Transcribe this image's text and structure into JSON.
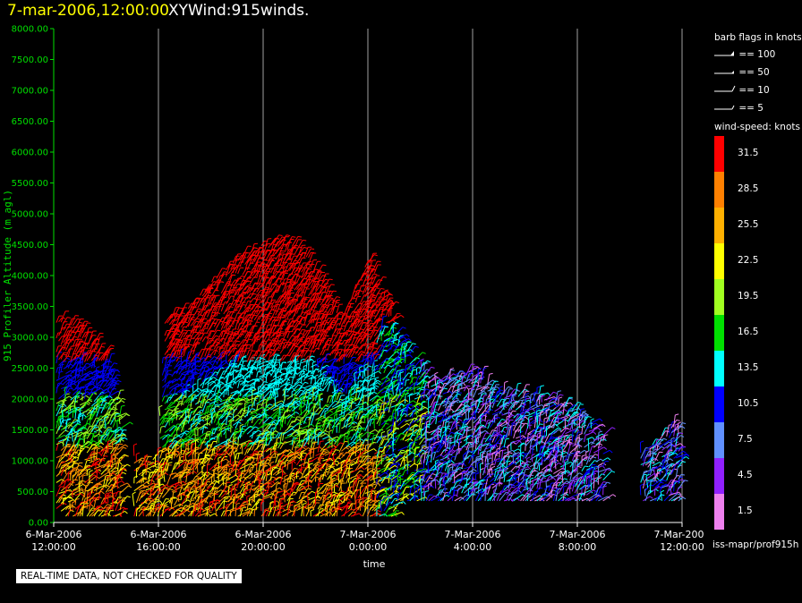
{
  "header": {
    "datetime": "7-mar-2006,12:00:00",
    "product": "XYWind:915winds."
  },
  "chart_data": {
    "type": "scatter",
    "title": "7-mar-2006,12:00:00 XYWind:915winds.",
    "xlabel": "time",
    "ylabel": "915 Profiler Altitude (m agl)",
    "ylim": [
      0,
      8000
    ],
    "yticks": [
      "0.00",
      "500.00",
      "1000.00",
      "1500.00",
      "2000.00",
      "2500.00",
      "3000.00",
      "3500.00",
      "4000.00",
      "4500.00",
      "5000.00",
      "5500.00",
      "6000.00",
      "6500.00",
      "7000.00",
      "7500.00",
      "8000.00"
    ],
    "xlim_hours": [
      0,
      24
    ],
    "xticks": [
      {
        "date": "6-Mar-2006",
        "time": "12:00:00"
      },
      {
        "date": "6-Mar-2006",
        "time": "16:00:00"
      },
      {
        "date": "6-Mar-2006",
        "time": "20:00:00"
      },
      {
        "date": "7-Mar-2006",
        "time": "0:00:00"
      },
      {
        "date": "7-Mar-2006",
        "time": "4:00:00"
      },
      {
        "date": "7-Mar-2006",
        "time": "8:00:00"
      },
      {
        "date": "7-Mar-2006",
        "time": "12:00:00"
      }
    ],
    "grid": "vertical",
    "legend_placement": "right",
    "series_description": "wind barbs by height and time, colored by wind speed",
    "profile_top_heights_m": [
      {
        "hour": 0.2,
        "top": 3250
      },
      {
        "hour": 1.0,
        "top": 3200
      },
      {
        "hour": 2.0,
        "top": 2700
      },
      {
        "hour": 3.2,
        "top": 1000
      },
      {
        "hour": 4.0,
        "top": 1100
      },
      {
        "hour": 4.2,
        "top": 3300
      },
      {
        "hour": 5.0,
        "top": 3400
      },
      {
        "hour": 6.0,
        "top": 3900
      },
      {
        "hour": 7.0,
        "top": 4300
      },
      {
        "hour": 8.0,
        "top": 4500
      },
      {
        "hour": 9.0,
        "top": 4550
      },
      {
        "hour": 10.0,
        "top": 4200
      },
      {
        "hour": 11.0,
        "top": 3300
      },
      {
        "hour": 12.0,
        "top": 4300
      },
      {
        "hour": 12.8,
        "top": 3500
      },
      {
        "hour": 13.5,
        "top": 2800
      },
      {
        "hour": 14.5,
        "top": 2300
      },
      {
        "hour": 16.0,
        "top": 2500
      },
      {
        "hour": 17.0,
        "top": 2100
      },
      {
        "hour": 18.5,
        "top": 2100
      },
      {
        "hour": 20.0,
        "top": 1800
      },
      {
        "hour": 22.0,
        "top": 1000
      },
      {
        "hour": 23.8,
        "top": 1600
      }
    ],
    "colorbar": {
      "title": "wind-speed: knots",
      "levels": [
        {
          "label": "31.5",
          "color": "#ff0000"
        },
        {
          "label": "28.5",
          "color": "#ff8000"
        },
        {
          "label": "25.5",
          "color": "#ffb000"
        },
        {
          "label": "22.5",
          "color": "#ffff00"
        },
        {
          "label": "19.5",
          "color": "#a0ff20"
        },
        {
          "label": "16.5",
          "color": "#00e000"
        },
        {
          "label": "13.5",
          "color": "#00ffff"
        },
        {
          "label": "10.5",
          "color": "#0000ff"
        },
        {
          "label": "7.5",
          "color": "#6090ff"
        },
        {
          "label": "4.5",
          "color": "#9020ff"
        },
        {
          "label": "1.5",
          "color": "#ee80ee"
        }
      ]
    }
  },
  "legend": {
    "barb_title": "barb flags in knots",
    "barbs": [
      {
        "label": "== 100",
        "icon": "barb-100-icon"
      },
      {
        "label": "== 50",
        "icon": "barb-50-icon"
      },
      {
        "label": "== 10",
        "icon": "barb-10-icon"
      },
      {
        "label": "== 5",
        "icon": "barb-5-icon"
      }
    ]
  },
  "footer": {
    "source": "iss-mapr/prof915h",
    "disclaimer": "REAL-TIME DATA, NOT CHECKED FOR QUALITY"
  }
}
